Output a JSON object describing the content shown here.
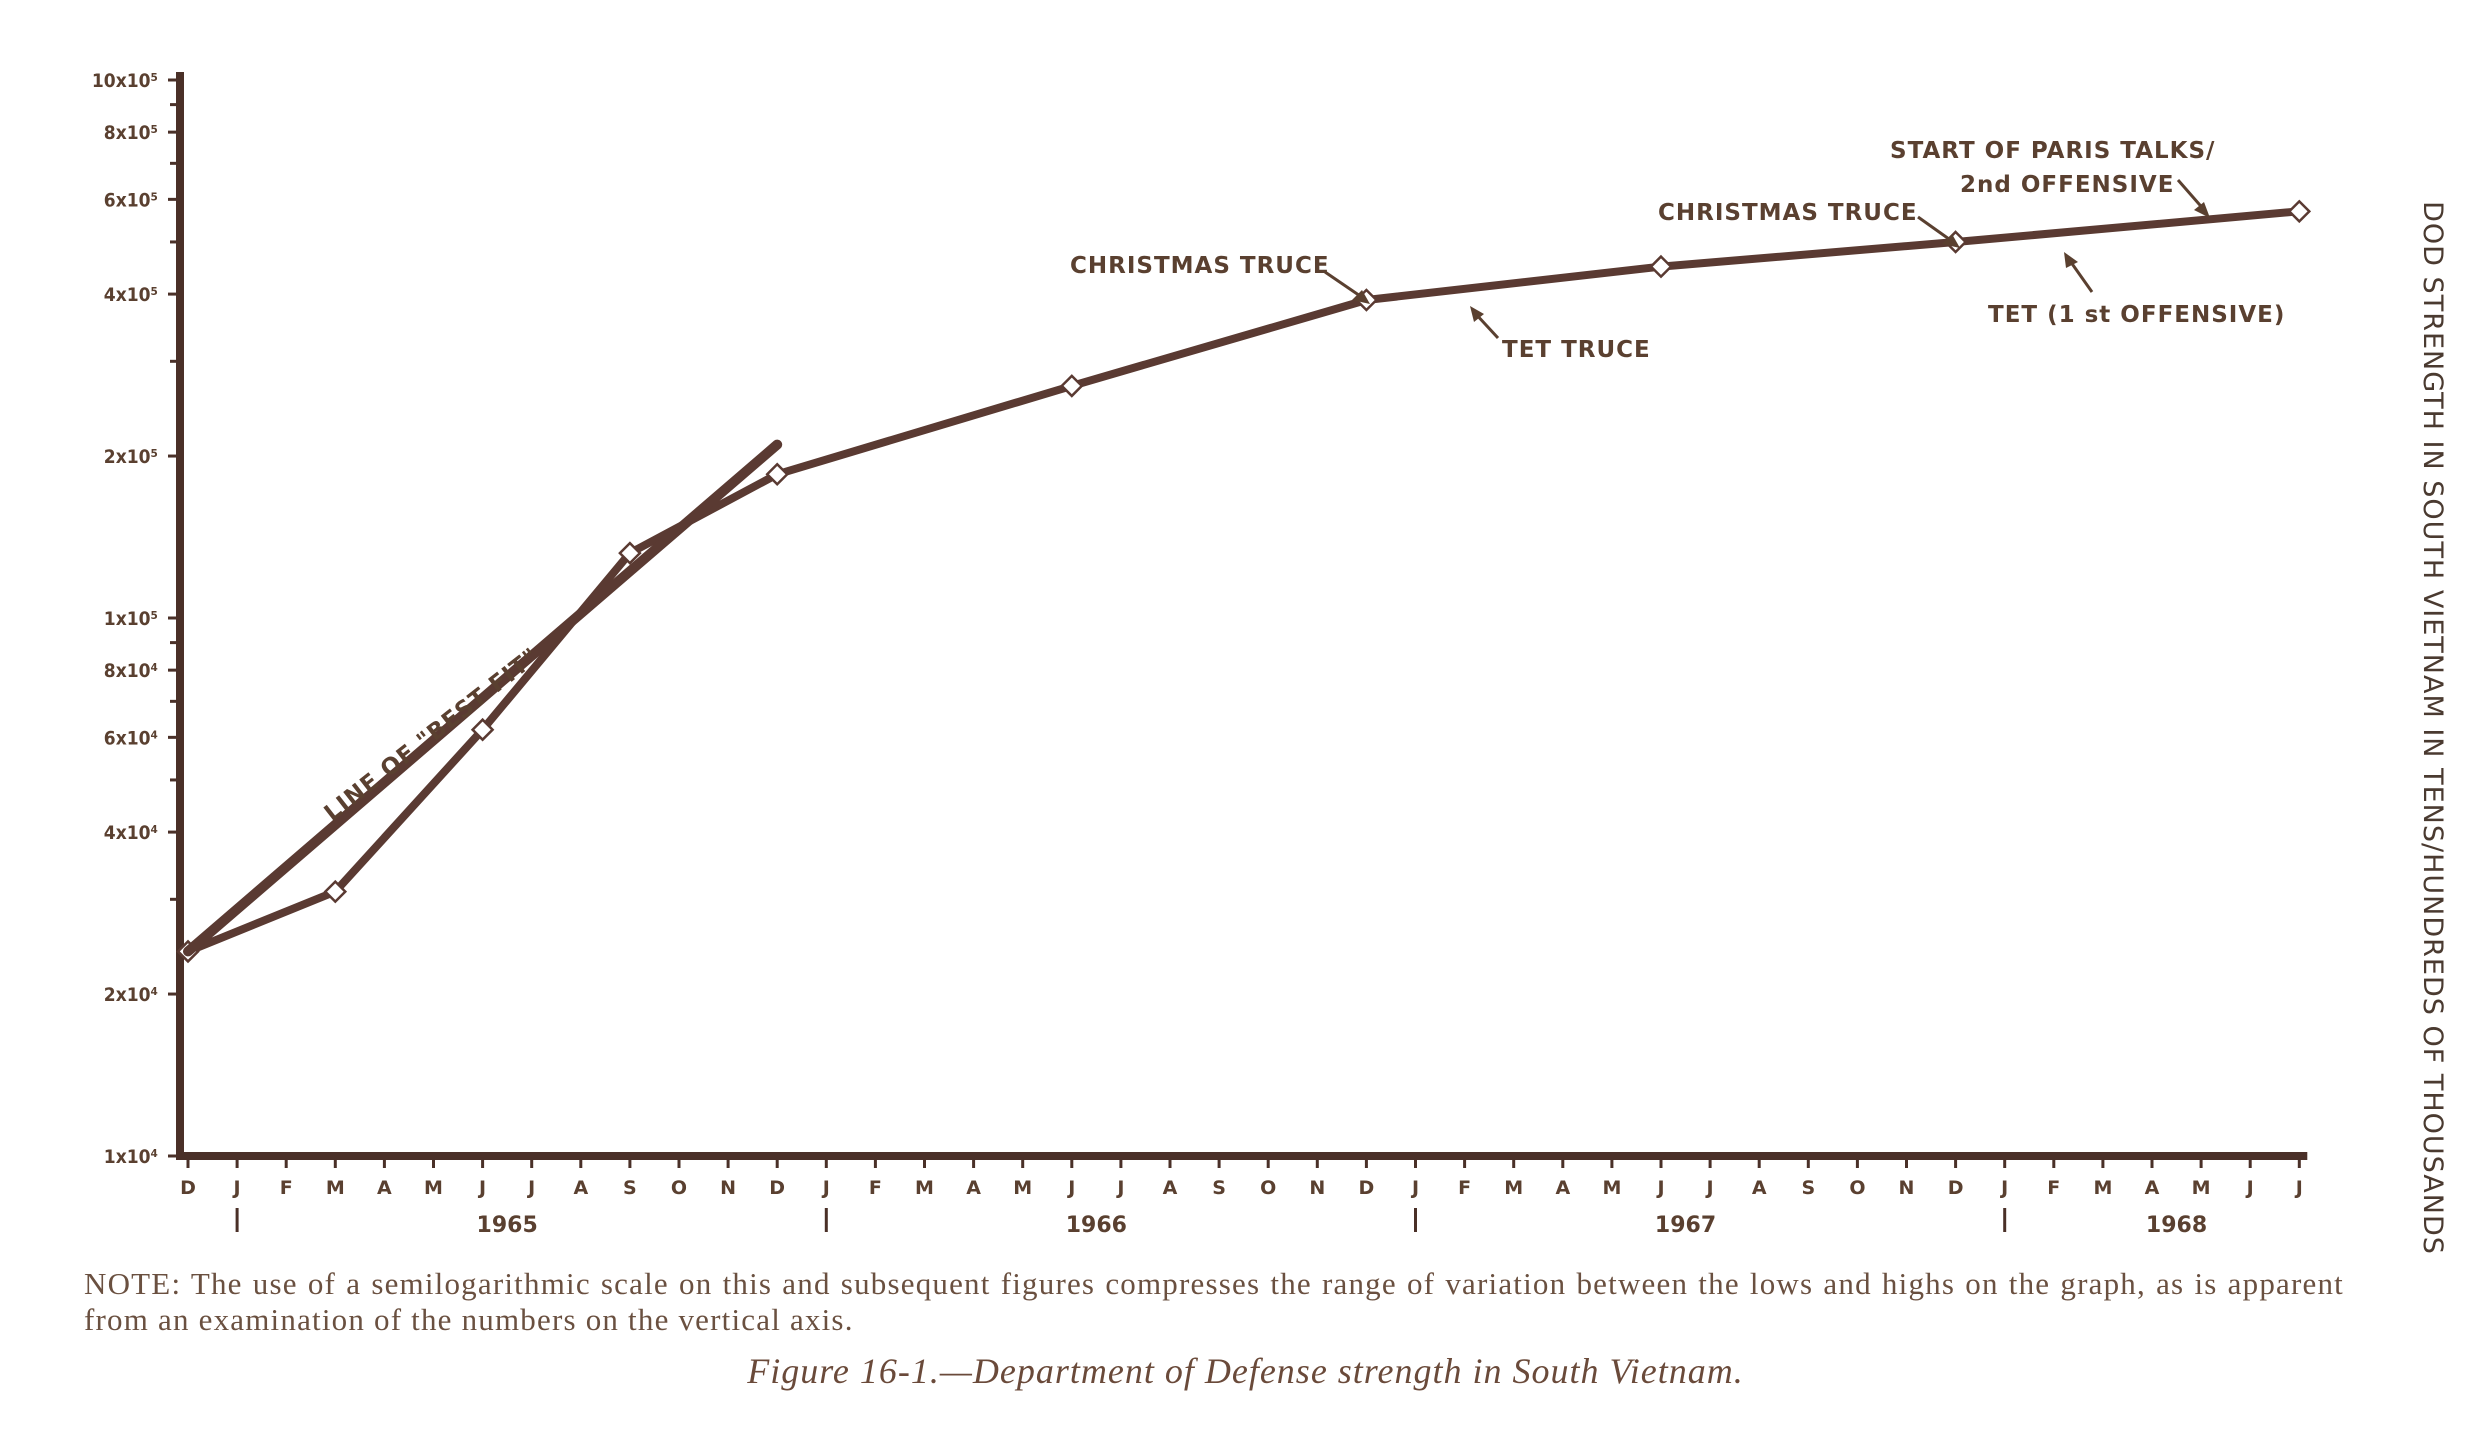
{
  "chart_data": {
    "type": "line",
    "y_scale": "log",
    "ylim": [
      10000,
      1000000
    ],
    "ylabel": "DOD STRENGTH IN SOUTH VIETNAM IN TENS/HUNDREDS OF THOUSANDS",
    "y_ticks": [
      {
        "value": 10000,
        "label": "1x10⁴"
      },
      {
        "value": 20000,
        "label": "2x10⁴"
      },
      {
        "value": 40000,
        "label": "4x10⁴"
      },
      {
        "value": 60000,
        "label": "6x10⁴"
      },
      {
        "value": 80000,
        "label": "8x10⁴"
      },
      {
        "value": 100000,
        "label": "1x10⁵"
      },
      {
        "value": 200000,
        "label": "2x10⁵"
      },
      {
        "value": 400000,
        "label": "4x10⁵"
      },
      {
        "value": 600000,
        "label": "6x10⁵"
      },
      {
        "value": 800000,
        "label": "8x10⁵"
      },
      {
        "value": 1000000,
        "label": "10x10⁵"
      }
    ],
    "y_minor_ticks": [
      30000,
      50000,
      70000,
      90000,
      300000,
      500000,
      700000,
      900000
    ],
    "x_month_labels": [
      "D",
      "J",
      "F",
      "M",
      "A",
      "M",
      "J",
      "J",
      "A",
      "S",
      "O",
      "N",
      "D",
      "J",
      "F",
      "M",
      "A",
      "M",
      "J",
      "J",
      "A",
      "S",
      "O",
      "N",
      "D",
      "J",
      "F",
      "M",
      "A",
      "M",
      "J",
      "J",
      "A",
      "S",
      "O",
      "N",
      "D",
      "J",
      "F",
      "M",
      "A",
      "M",
      "J",
      "J"
    ],
    "x_year_labels": [
      {
        "label": "1965",
        "month_index": 6.5
      },
      {
        "label": "1966",
        "month_index": 18.5
      },
      {
        "label": "1967",
        "month_index": 30.5
      },
      {
        "label": "1968",
        "month_index": 40.5
      }
    ],
    "x_year_dividers": [
      1,
      13,
      25,
      37
    ],
    "series": [
      {
        "points": [
          {
            "x": "Dec 1964",
            "month_index": 0,
            "y": 24000
          },
          {
            "x": "Mar 1965",
            "month_index": 3,
            "y": 31000
          },
          {
            "x": "Jun 1965",
            "month_index": 6,
            "y": 62000
          },
          {
            "x": "Sep 1965",
            "month_index": 9,
            "y": 132000
          },
          {
            "x": "Dec 1965",
            "month_index": 12,
            "y": 185000
          },
          {
            "x": "Jun 1966",
            "month_index": 18,
            "y": 270000
          },
          {
            "x": "Dec 1966",
            "month_index": 24,
            "y": 390000
          },
          {
            "x": "Jun 1967",
            "month_index": 30,
            "y": 450000
          },
          {
            "x": "Dec 1967",
            "month_index": 36,
            "y": 500000
          },
          {
            "x": "Jul 1968",
            "month_index": 43,
            "y": 570000
          }
        ]
      },
      {
        "fit": true,
        "points": [
          {
            "month_index": 0,
            "y": 24000
          },
          {
            "month_index": 12,
            "y": 210000
          }
        ]
      }
    ],
    "annotations": [
      {
        "text": "LINE OF \"BEST FIT\"",
        "month_index": 3,
        "y": 36000
      },
      {
        "text": "CHRISTMAS TRUCE",
        "month_index": 24
      },
      {
        "text": "TET TRUCE",
        "month_index": 25
      },
      {
        "text": "CHRISTMAS TRUCE",
        "month_index": 36
      },
      {
        "text": "TET (1 st OFFENSIVE)",
        "month_index": 38
      },
      {
        "text": "START OF PARIS TALKS/",
        "month_index": 41
      },
      {
        "text": "2nd OFFENSIVE",
        "month_index": 41
      }
    ]
  },
  "note": "NOTE: The use of a semilogarithmic scale on this and subsequent figures compresses the range of variation between the lows and highs on the graph, as is apparent from an examination of the numbers on the vertical axis.",
  "caption": "Figure 16-1.—Department of Defense strength in South Vietnam.",
  "colors": {
    "line": "#5a3a32",
    "axis": "#4a3028",
    "text": "#5a4030"
  }
}
